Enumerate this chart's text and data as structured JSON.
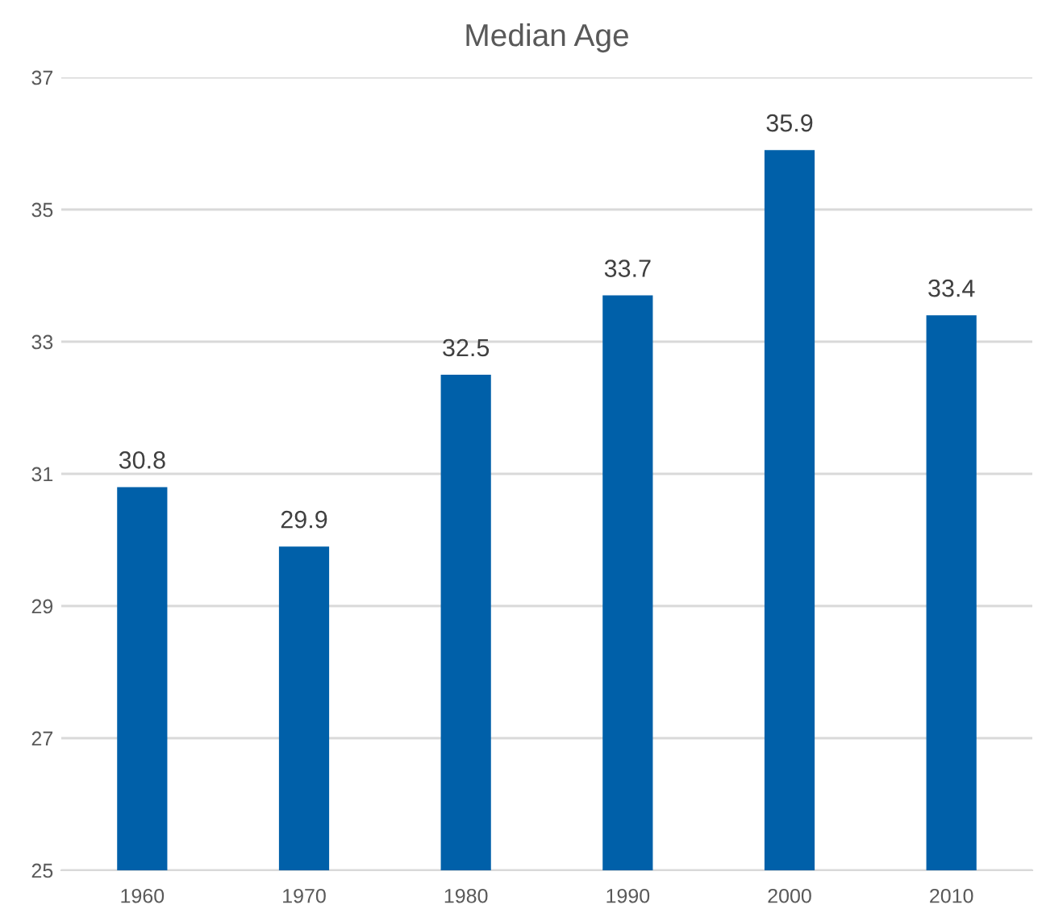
{
  "chart_data": {
    "type": "bar",
    "title": "Median Age",
    "categories": [
      "1960",
      "1970",
      "1980",
      "1990",
      "2000",
      "2010"
    ],
    "values": [
      30.8,
      29.9,
      32.5,
      33.7,
      35.9,
      33.4
    ],
    "color": "#0060a9",
    "ylim": [
      25,
      37
    ],
    "yticks": [
      25,
      27,
      29,
      31,
      33,
      35,
      37
    ],
    "grid": "y",
    "data_labels": true
  }
}
